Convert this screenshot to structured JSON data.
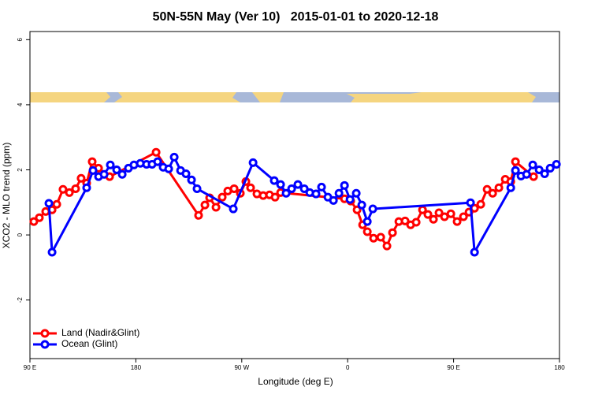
{
  "chart_data": {
    "type": "line",
    "title": "50N-55N May (Ver 10)   2015-01-01 to 2020-12-18",
    "x_label": "Longitude (deg E)",
    "y_label": "XCO2 - MLO trend (ppm)",
    "xlim": [
      90,
      540
    ],
    "ylim": [
      -3.8,
      6.25
    ],
    "xticks": [
      {
        "value": 90,
        "label": "90 E"
      },
      180,
      {
        "value": 270,
        "label": "90 W"
      },
      {
        "value": 360,
        "label": "0"
      },
      {
        "value": 450,
        "label": "90 E"
      },
      {
        "value": 540,
        "label": "180"
      }
    ],
    "yticks": [
      -2,
      0,
      2,
      4,
      6
    ],
    "legend": "bottom-left",
    "series": [
      {
        "name": "Land (Nadir&Glint)",
        "color": "#ff0000",
        "x": [
          93.3,
          98.0,
          103.4,
          108.8,
          112.8,
          118.1,
          123.5,
          128.8,
          133.5,
          138.2,
          142.9,
          148.3,
          157.7,
          197.2,
          233.3,
          238.7,
          242.7,
          248.1,
          253.4,
          258.1,
          263.5,
          268.8,
          273.5,
          277.5,
          282.9,
          288.2,
          293.6,
          298.3,
          303.0,
          357.3,
          362.6,
          368.0,
          372.7,
          376.7,
          382.0,
          388.1,
          393.4,
          398.1,
          403.5,
          408.8,
          413.5,
          418.2,
          423.6,
          428.2,
          432.9,
          437.6,
          442.3,
          447.7,
          453.0,
          458.4,
          463.1,
          467.8,
          473.1,
          478.5,
          483.2,
          488.5,
          493.9,
          498.6,
          502.6,
          518.0
        ],
        "values": [
          0.41,
          0.53,
          0.72,
          0.77,
          0.94,
          1.4,
          1.3,
          1.42,
          1.74,
          1.59,
          2.25,
          2.05,
          1.79,
          2.54,
          0.6,
          0.92,
          1.14,
          0.85,
          1.16,
          1.35,
          1.42,
          1.28,
          1.64,
          1.45,
          1.26,
          1.21,
          1.23,
          1.16,
          1.3,
          1.11,
          1.04,
          0.77,
          0.31,
          0.1,
          -0.1,
          -0.07,
          -0.34,
          0.07,
          0.41,
          0.43,
          0.31,
          0.39,
          0.77,
          0.63,
          0.48,
          0.68,
          0.56,
          0.65,
          0.41,
          0.56,
          0.7,
          0.82,
          0.94,
          1.4,
          1.28,
          1.45,
          1.71,
          1.64,
          2.25,
          1.79
        ]
      },
      {
        "name": "Ocean (Glint)",
        "color": "#0000ff",
        "x": [
          106.1,
          108.8,
          138.2,
          143.6,
          148.3,
          153.0,
          158.3,
          163.7,
          168.4,
          173.7,
          178.4,
          183.8,
          189.1,
          193.8,
          198.5,
          203.2,
          207.9,
          212.6,
          218.0,
          222.6,
          227.3,
          232.0,
          262.8,
          279.6,
          297.6,
          303.0,
          307.7,
          312.4,
          317.7,
          323.1,
          327.8,
          333.1,
          337.8,
          343.2,
          347.9,
          352.6,
          357.3,
          362.0,
          367.3,
          372.0,
          376.7,
          381.4,
          464.4,
          467.8,
          498.6,
          502.6,
          507.3,
          512.0,
          517.3,
          522.7,
          527.4,
          532.1,
          537.4
        ],
        "values": [
          0.97,
          -0.53,
          1.45,
          1.98,
          1.79,
          1.86,
          2.15,
          2.0,
          1.86,
          2.05,
          2.15,
          2.2,
          2.17,
          2.17,
          2.25,
          2.08,
          2.03,
          2.39,
          1.98,
          1.88,
          1.69,
          1.42,
          0.8,
          2.22,
          1.67,
          1.55,
          1.28,
          1.42,
          1.55,
          1.42,
          1.3,
          1.26,
          1.47,
          1.16,
          1.06,
          1.28,
          1.52,
          1.09,
          1.28,
          0.92,
          0.41,
          0.8,
          0.99,
          -0.53,
          1.45,
          1.98,
          1.81,
          1.86,
          2.15,
          2.0,
          1.88,
          2.05,
          2.17
        ]
      }
    ]
  }
}
